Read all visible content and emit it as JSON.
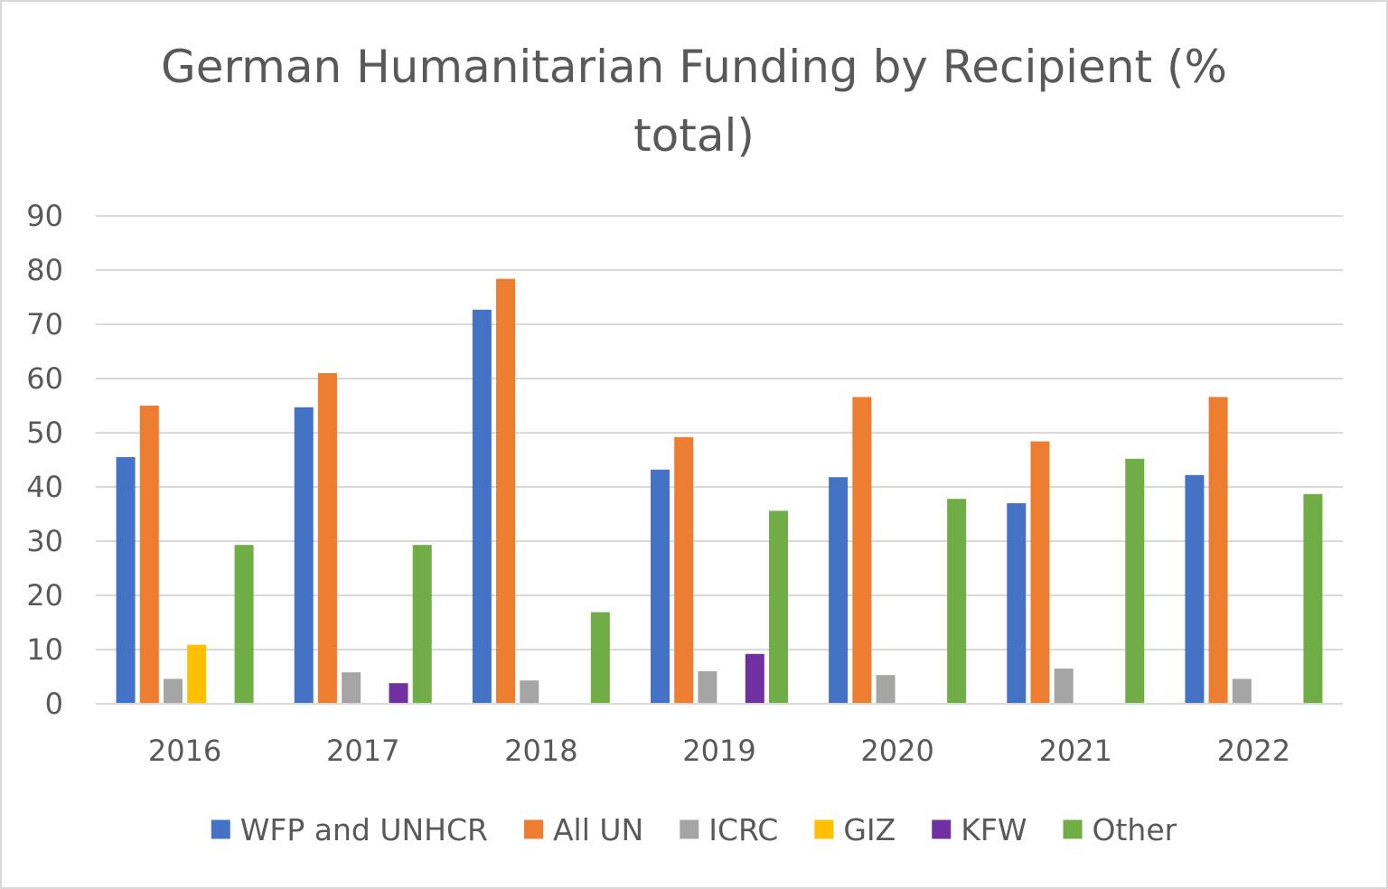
{
  "chart_data": {
    "type": "bar",
    "title_line1": "German Humanitarian Funding by Recipient (%",
    "title_line2": "total)",
    "categories": [
      "2016",
      "2017",
      "2018",
      "2019",
      "2020",
      "2021",
      "2022"
    ],
    "series": [
      {
        "name": "WFP and UNHCR",
        "color": "#4472c4",
        "values": [
          45.5,
          54.7,
          72.7,
          43.2,
          41.8,
          37.0,
          42.2
        ]
      },
      {
        "name": "All UN",
        "color": "#ed7d31",
        "values": [
          55.0,
          61.0,
          78.4,
          49.2,
          56.6,
          48.4,
          56.6
        ]
      },
      {
        "name": "ICRC",
        "color": "#a5a5a5",
        "values": [
          4.6,
          5.8,
          4.3,
          6.0,
          5.3,
          6.5,
          4.6
        ]
      },
      {
        "name": "GIZ",
        "color": "#ffc000",
        "values": [
          10.9,
          null,
          null,
          null,
          null,
          null,
          null
        ]
      },
      {
        "name": "KFW",
        "color": "#7030a0",
        "values": [
          null,
          3.8,
          null,
          9.2,
          null,
          null,
          null
        ]
      },
      {
        "name": "Other",
        "color": "#70ad47",
        "values": [
          29.3,
          29.3,
          16.9,
          35.6,
          37.8,
          45.2,
          38.7
        ]
      }
    ],
    "yticks": [
      "0",
      "10",
      "20",
      "30",
      "40",
      "50",
      "60",
      "70",
      "80",
      "90"
    ],
    "ylim": [
      0,
      90
    ],
    "xlabel": "",
    "ylabel": "",
    "grid": true,
    "legend_position": "bottom"
  }
}
